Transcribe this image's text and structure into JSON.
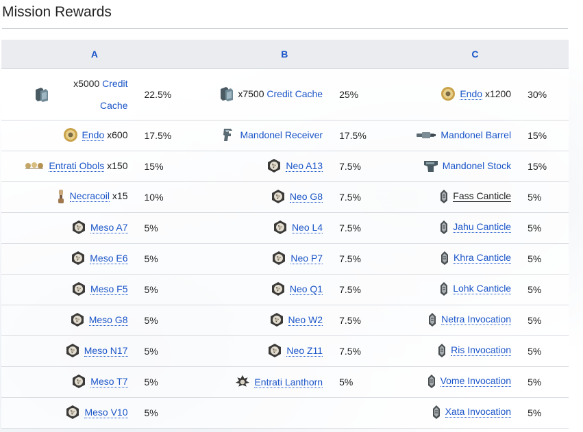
{
  "heading": "Mission Rewards",
  "columns": [
    "A",
    "B",
    "C"
  ],
  "rows": [
    {
      "a": {
        "qty_pre": "x5000",
        "link": "Credit Cache",
        "qty_post": "",
        "icon": "credit-cache-icon",
        "chance": "22.5%"
      },
      "b": {
        "qty_pre": "x7500",
        "link": "Credit Cache",
        "qty_post": "",
        "icon": "credit-cache-icon",
        "chance": "25%"
      },
      "c": {
        "qty_pre": "",
        "link": "Endo",
        "qty_post": "x1200",
        "icon": "endo-icon",
        "chance": "30%"
      }
    },
    {
      "a": {
        "qty_pre": "",
        "link": "Endo",
        "qty_post": "x600",
        "icon": "endo-icon",
        "chance": "17.5%"
      },
      "b": {
        "qty_pre": "",
        "link": "Mandonel Receiver",
        "qty_post": "",
        "icon": "receiver-icon",
        "chance": "17.5%"
      },
      "c": {
        "qty_pre": "",
        "link": "Mandonel Barrel",
        "qty_post": "",
        "icon": "barrel-icon",
        "chance": "15%"
      }
    },
    {
      "a": {
        "qty_pre": "",
        "link": "Entrati Obols",
        "qty_post": "x150",
        "icon": "obols-icon",
        "chance": "15%"
      },
      "b": {
        "qty_pre": "",
        "link": "Neo A13",
        "qty_post": "",
        "icon": "relic-icon",
        "chance": "7.5%"
      },
      "c": {
        "qty_pre": "",
        "link": "Mandonel Stock",
        "qty_post": "",
        "icon": "stock-icon",
        "chance": "15%"
      }
    },
    {
      "a": {
        "qty_pre": "",
        "link": "Necracoil",
        "qty_post": "x15",
        "icon": "necracoil-icon",
        "chance": "10%"
      },
      "b": {
        "qty_pre": "",
        "link": "Neo G8",
        "qty_post": "",
        "icon": "relic-icon",
        "chance": "7.5%"
      },
      "c": {
        "qty_pre": "",
        "link": "Fass Canticle",
        "qty_post": "",
        "icon": "canticle-icon",
        "chance": "5%"
      }
    },
    {
      "a": {
        "qty_pre": "",
        "link": "Meso A7",
        "qty_post": "",
        "icon": "relic-icon",
        "chance": "5%"
      },
      "b": {
        "qty_pre": "",
        "link": "Neo L4",
        "qty_post": "",
        "icon": "relic-icon",
        "chance": "7.5%"
      },
      "c": {
        "qty_pre": "",
        "link": "Jahu Canticle",
        "qty_post": "",
        "icon": "canticle-icon",
        "chance": "5%"
      }
    },
    {
      "a": {
        "qty_pre": "",
        "link": "Meso E6",
        "qty_post": "",
        "icon": "relic-icon",
        "chance": "5%"
      },
      "b": {
        "qty_pre": "",
        "link": "Neo P7",
        "qty_post": "",
        "icon": "relic-icon",
        "chance": "7.5%"
      },
      "c": {
        "qty_pre": "",
        "link": "Khra Canticle",
        "qty_post": "",
        "icon": "canticle-icon",
        "chance": "5%"
      }
    },
    {
      "a": {
        "qty_pre": "",
        "link": "Meso F5",
        "qty_post": "",
        "icon": "relic-icon",
        "chance": "5%"
      },
      "b": {
        "qty_pre": "",
        "link": "Neo Q1",
        "qty_post": "",
        "icon": "relic-icon",
        "chance": "7.5%"
      },
      "c": {
        "qty_pre": "",
        "link": "Lohk Canticle",
        "qty_post": "",
        "icon": "canticle-icon",
        "chance": "5%"
      }
    },
    {
      "a": {
        "qty_pre": "",
        "link": "Meso G8",
        "qty_post": "",
        "icon": "relic-icon",
        "chance": "5%"
      },
      "b": {
        "qty_pre": "",
        "link": "Neo W2",
        "qty_post": "",
        "icon": "relic-icon",
        "chance": "7.5%"
      },
      "c": {
        "qty_pre": "",
        "link": "Netra Invocation",
        "qty_post": "",
        "icon": "canticle-icon",
        "chance": "5%"
      }
    },
    {
      "a": {
        "qty_pre": "",
        "link": "Meso N17",
        "qty_post": "",
        "icon": "relic-icon",
        "chance": "5%"
      },
      "b": {
        "qty_pre": "",
        "link": "Neo Z11",
        "qty_post": "",
        "icon": "relic-icon",
        "chance": "7.5%"
      },
      "c": {
        "qty_pre": "",
        "link": "Ris Invocation",
        "qty_post": "",
        "icon": "canticle-icon",
        "chance": "5%"
      }
    },
    {
      "a": {
        "qty_pre": "",
        "link": "Meso T7",
        "qty_post": "",
        "icon": "relic-icon",
        "chance": "5%"
      },
      "b": {
        "qty_pre": "",
        "link": "Entrati Lanthorn",
        "qty_post": "",
        "icon": "lanthorn-icon",
        "chance": "5%"
      },
      "c": {
        "qty_pre": "",
        "link": "Vome Invocation",
        "qty_post": "",
        "icon": "canticle-icon",
        "chance": "5%"
      }
    },
    {
      "a": {
        "qty_pre": "",
        "link": "Meso V10",
        "qty_post": "",
        "icon": "relic-icon",
        "chance": "5%"
      },
      "b": null,
      "c": {
        "qty_pre": "",
        "link": "Xata Invocation",
        "qty_post": "",
        "icon": "canticle-icon",
        "chance": "5%"
      }
    }
  ],
  "colors": {
    "link": "#1a55c8",
    "header_bg": "#eaecf0",
    "text": "#222222"
  }
}
